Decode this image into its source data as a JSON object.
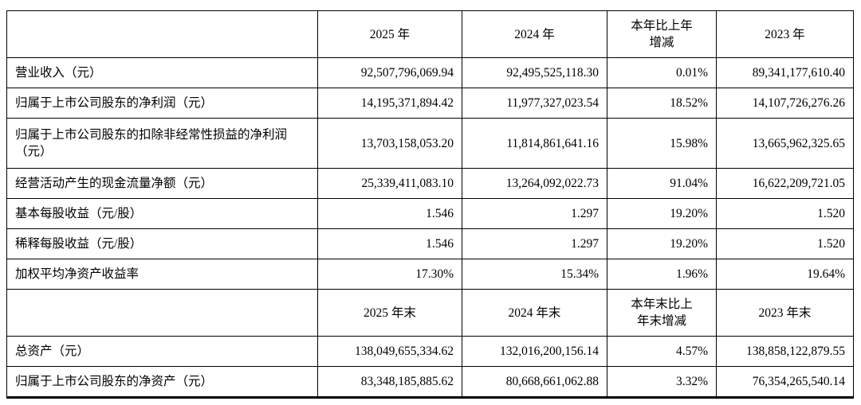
{
  "page": {
    "background": "#ffffff",
    "border_color": "#000000"
  },
  "table": {
    "header_annual": {
      "col_2025": "2025 年",
      "col_2024": "2024 年",
      "col_change": "本年比上年增减",
      "col_2023": "2023 年"
    },
    "rows_annual": [
      {
        "label": "营业收入（元）",
        "v2025": "92,507,796,069.94",
        "v2024": "92,495,525,118.30",
        "change": "0.01%",
        "v2023": "89,341,177,610.40"
      },
      {
        "label": "归属于上市公司股东的净利润（元）",
        "v2025": "14,195,371,894.42",
        "v2024": "11,977,327,023.54",
        "change": "18.52%",
        "v2023": "14,107,726,276.26"
      },
      {
        "label": "归属于上市公司股东的扣除非经常性损益的净利润（元）",
        "v2025": "13,703,158,053.20",
        "v2024": "11,814,861,641.16",
        "change": "15.98%",
        "v2023": "13,665,962,325.65"
      },
      {
        "label": "经营活动产生的现金流量净额（元）",
        "v2025": "25,339,411,083.10",
        "v2024": "13,264,092,022.73",
        "change": "91.04%",
        "v2023": "16,622,209,721.05"
      },
      {
        "label": "基本每股收益（元/股）",
        "v2025": "1.546",
        "v2024": "1.297",
        "change": "19.20%",
        "v2023": "1.520"
      },
      {
        "label": "稀释每股收益（元/股）",
        "v2025": "1.546",
        "v2024": "1.297",
        "change": "19.20%",
        "v2023": "1.520"
      },
      {
        "label": "加权平均净资产收益率",
        "v2025": "17.30%",
        "v2024": "15.34%",
        "change": "1.96%",
        "v2023": "19.64%"
      }
    ],
    "header_eop": {
      "col_2025": "2025 年末",
      "col_2024": "2024 年末",
      "col_change": "本年末比上年末增减",
      "col_2023": "2023 年末"
    },
    "rows_eop": [
      {
        "label": "总资产（元）",
        "v2025": "138,049,655,334.62",
        "v2024": "132,016,200,156.14",
        "change": "4.57%",
        "v2023": "138,858,122,879.55"
      },
      {
        "label": "归属于上市公司股东的净资产（元）",
        "v2025": "83,348,185,885.62",
        "v2024": "80,668,661,062.88",
        "change": "3.32%",
        "v2023": "76,354,265,540.14"
      }
    ]
  }
}
